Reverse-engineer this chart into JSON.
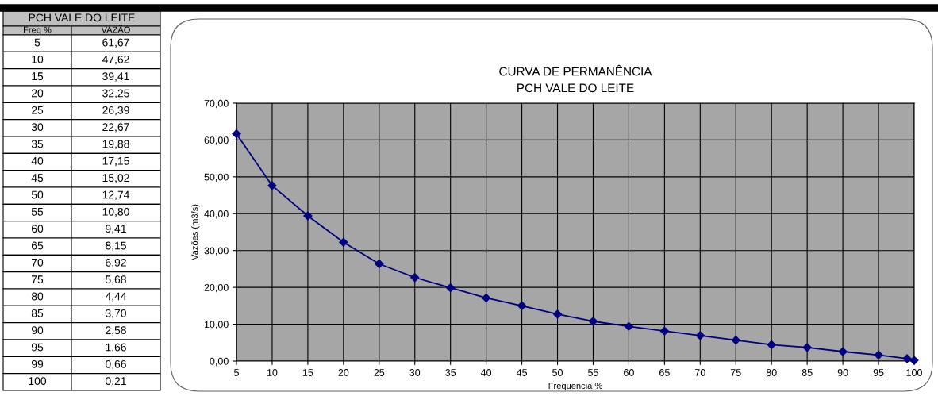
{
  "chart_data": [
    {
      "type": "other",
      "title": "PCH VALE DO LEITE",
      "annotations": [
        "Freq %",
        "VAZÃO",
        "5",
        "61,67",
        "10",
        "47,62",
        "15",
        "39,41",
        "20",
        "32,25",
        "25",
        "26,39",
        "30",
        "22,67",
        "35",
        "19,88",
        "40",
        "17,15",
        "45",
        "15,02",
        "50",
        "12,74",
        "55",
        "10,80",
        "60",
        "9,41",
        "65",
        "8,15",
        "70",
        "6,92",
        "75",
        "5,68",
        "80",
        "4,44",
        "85",
        "3,70",
        "90",
        "2,58",
        "95",
        "1,66",
        "99",
        "0,66",
        "100",
        "0,21"
      ]
    },
    {
      "type": "line",
      "title": "CURVA DE PERMANÊNCIA\nPCH VALE DO LEITE",
      "xlabel": "Frequencia %",
      "ylabel": "Vazões (m3/s)",
      "x": [
        5,
        10,
        15,
        20,
        25,
        30,
        35,
        40,
        45,
        50,
        55,
        60,
        65,
        70,
        75,
        80,
        85,
        90,
        95,
        99,
        100
      ],
      "series": [
        {
          "color": "#000080",
          "values": [
            61.67,
            47.62,
            39.41,
            32.25,
            26.39,
            22.67,
            19.88,
            17.15,
            15.02,
            12.74,
            10.8,
            9.41,
            8.15,
            6.92,
            5.68,
            4.44,
            3.7,
            2.58,
            1.66,
            0.66,
            0.21
          ]
        }
      ],
      "xlim": [
        5,
        100
      ],
      "xticks": [
        5,
        10,
        15,
        20,
        25,
        30,
        35,
        40,
        45,
        50,
        55,
        60,
        65,
        70,
        75,
        80,
        85,
        90,
        95,
        100
      ],
      "ylim": [
        0,
        70
      ],
      "yticks": [
        {
          "value": 0,
          "label": "0,00"
        },
        {
          "value": 10,
          "label": "10,00"
        },
        {
          "value": 20,
          "label": "20,00"
        },
        {
          "value": 30,
          "label": "30,00"
        },
        {
          "value": 40,
          "label": "40,00"
        },
        {
          "value": 50,
          "label": "50,00"
        },
        {
          "value": 60,
          "label": "60,00"
        },
        {
          "value": 70,
          "label": "70,00"
        }
      ],
      "grid": true,
      "marker": "diamond",
      "line_style": "solid"
    }
  ]
}
